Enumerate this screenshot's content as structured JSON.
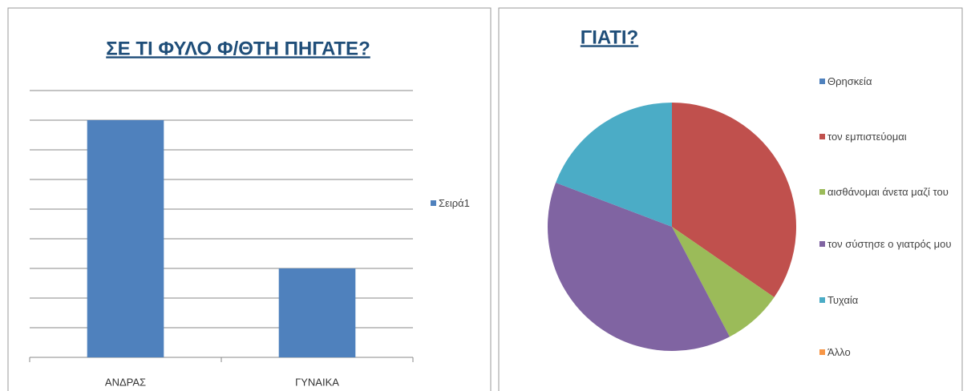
{
  "chart_data": [
    {
      "type": "bar",
      "title": "ΣΕ ΤΙ ΦΥΛΟ Φ/ΘΤΗ ΠΗΓΑΤΕ?",
      "categories": [
        "ΑΝΔΡΑΣ",
        "ΓΥΝΑΙΚΑ"
      ],
      "series": [
        {
          "name": "Σειρά1",
          "color": "#4f81bd",
          "values": [
            8,
            3
          ]
        }
      ],
      "ylim": [
        0,
        9
      ],
      "yticks": [
        0,
        1,
        2,
        3,
        4,
        5,
        6,
        7,
        8,
        9
      ],
      "grid": true,
      "legend": "right"
    },
    {
      "type": "pie",
      "title": "ΓΙΑΤΙ?",
      "categories": [
        "Θρησκεία",
        "τον εμπιστεύομαι",
        "αισθάνομαι άνετα μαζί του",
        "τον σύστησε ο γιατρός μου",
        "Τυχαία",
        "Άλλο"
      ],
      "values": [
        0,
        9,
        2,
        10,
        5,
        0
      ],
      "colors": [
        "#4f81bd",
        "#c0504d",
        "#9bbb59",
        "#8064a2",
        "#4bacc6",
        "#f79646"
      ],
      "legend": "right"
    }
  ]
}
